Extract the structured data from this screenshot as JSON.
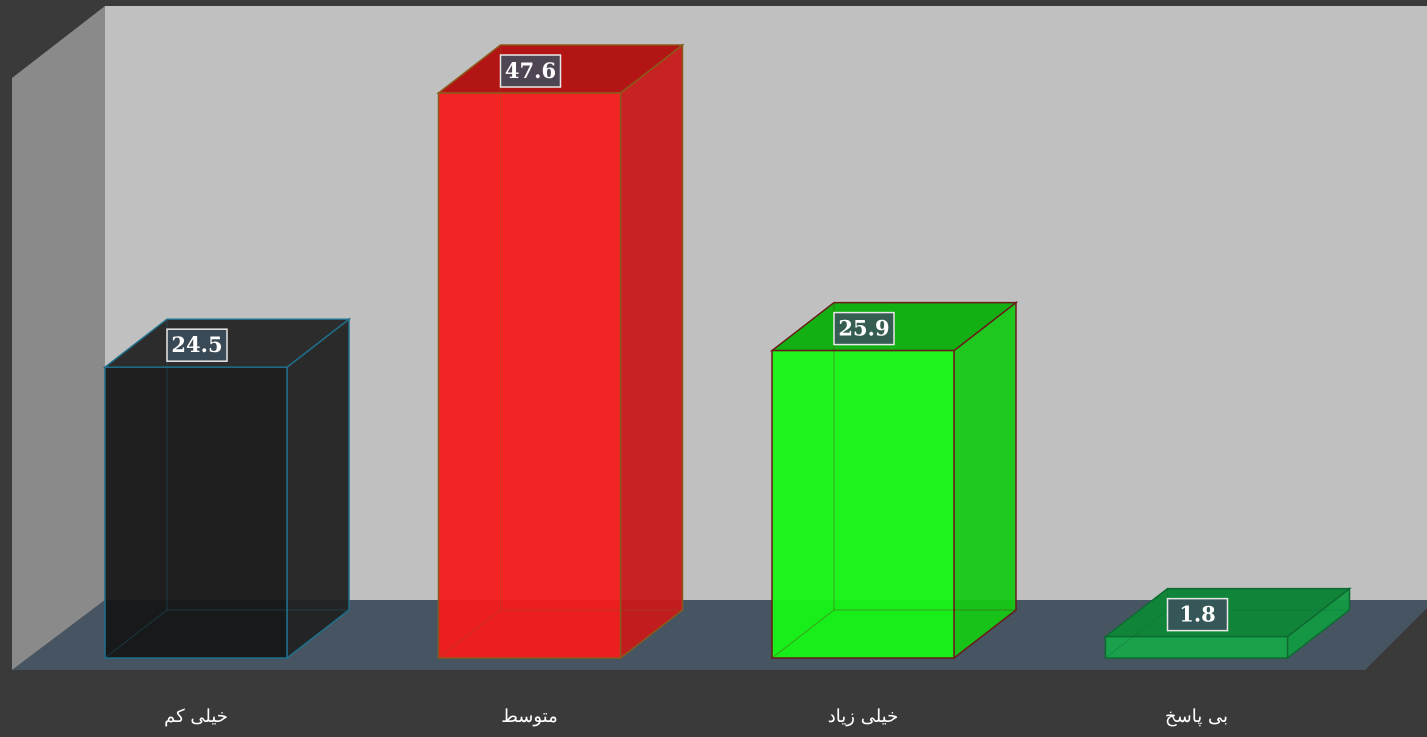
{
  "chart_data": {
    "type": "bar",
    "style": "3d",
    "categories": [
      "خیلی کم",
      "متوسط",
      "خیلی زیاد",
      "بی پاسخ"
    ],
    "values": [
      24.5,
      47.6,
      25.9,
      1.8
    ],
    "value_labels": [
      "24.5",
      "47.6",
      "25.9",
      "1.8"
    ],
    "title": "",
    "xlabel": "",
    "ylabel": "",
    "ylim": [
      0,
      50
    ],
    "grid": false,
    "legend": "none",
    "colors": {
      "background": "#3a3a3a",
      "back_wall": "#c0c0c0",
      "side_wall": "#8a8a8a",
      "floor": "#475563",
      "bars": [
        {
          "front": "#161616",
          "top": "#2c2c2c",
          "side": "#222222",
          "edge": "#1f6f8a"
        },
        {
          "front": "#f51b1b",
          "top": "#b31515",
          "side": "#c81a1a",
          "edge": "#8a5a1a"
        },
        {
          "front": "#16f716",
          "top": "#12b012",
          "side": "#15c815",
          "edge": "#6a1a1a"
        },
        {
          "front": "#18a54a",
          "top": "#10853a",
          "side": "#139a42",
          "edge": "#0d6b32"
        }
      ],
      "label_box": "#3c4f5e",
      "label_text": "#ffffff",
      "category_text": "#ffffff"
    }
  }
}
